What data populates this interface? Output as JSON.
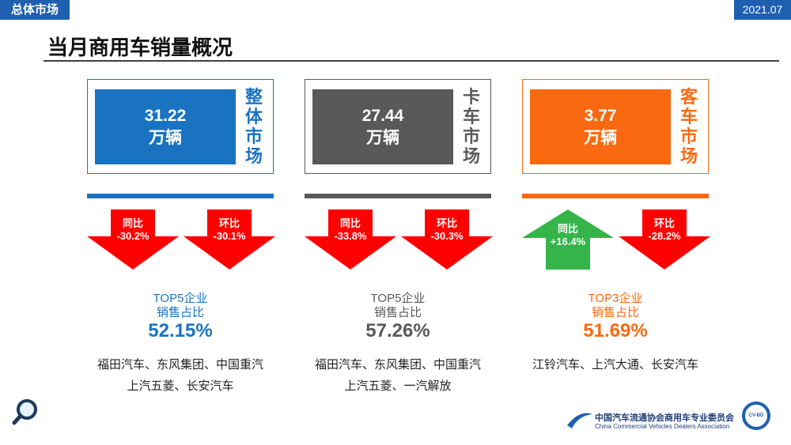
{
  "header": {
    "section": "总体市场",
    "date": "2021.07",
    "title": "当月商用车销量概况"
  },
  "panels": [
    {
      "value": "31.22",
      "unit": "万辆",
      "label": "整体市场",
      "color": "#1a73c1",
      "arrows": [
        {
          "label": "同比",
          "value": "-30.2%",
          "direction": "down"
        },
        {
          "label": "环比",
          "value": "-30.1%",
          "direction": "down"
        }
      ],
      "top": "TOP5企业",
      "share_label": "销售占比",
      "share": "52.15%",
      "companies": [
        "福田汽车、东风集团、中国重汽",
        "上汽五菱、长安汽车"
      ]
    },
    {
      "value": "27.44",
      "unit": "万辆",
      "label": "卡车市场",
      "color": "#595959",
      "arrows": [
        {
          "label": "同比",
          "value": "-33.8%",
          "direction": "down"
        },
        {
          "label": "环比",
          "value": "-30.3%",
          "direction": "down"
        }
      ],
      "top": "TOP5企业",
      "share_label": "销售占比",
      "share": "57.26%",
      "companies": [
        "福田汽车、东风集团、中国重汽",
        "上汽五菱、一汽解放"
      ]
    },
    {
      "value": "3.77",
      "unit": "万辆",
      "label": "客车市场",
      "color": "#f96a10",
      "arrows": [
        {
          "label": "同比",
          "value": "+16.4%",
          "direction": "up"
        },
        {
          "label": "环比",
          "value": "-28.2%",
          "direction": "down"
        }
      ],
      "top": "TOP3企业",
      "share_label": "销售占比",
      "share": "51.69%",
      "companies": [
        "江铃汽车、上汽大通、长安汽车"
      ]
    }
  ],
  "footer": {
    "org": "中国汽车流通协会商用车专业委员会",
    "org_en": "China Commercial Vehicles Dealers Association",
    "logo": "CV-BD"
  }
}
